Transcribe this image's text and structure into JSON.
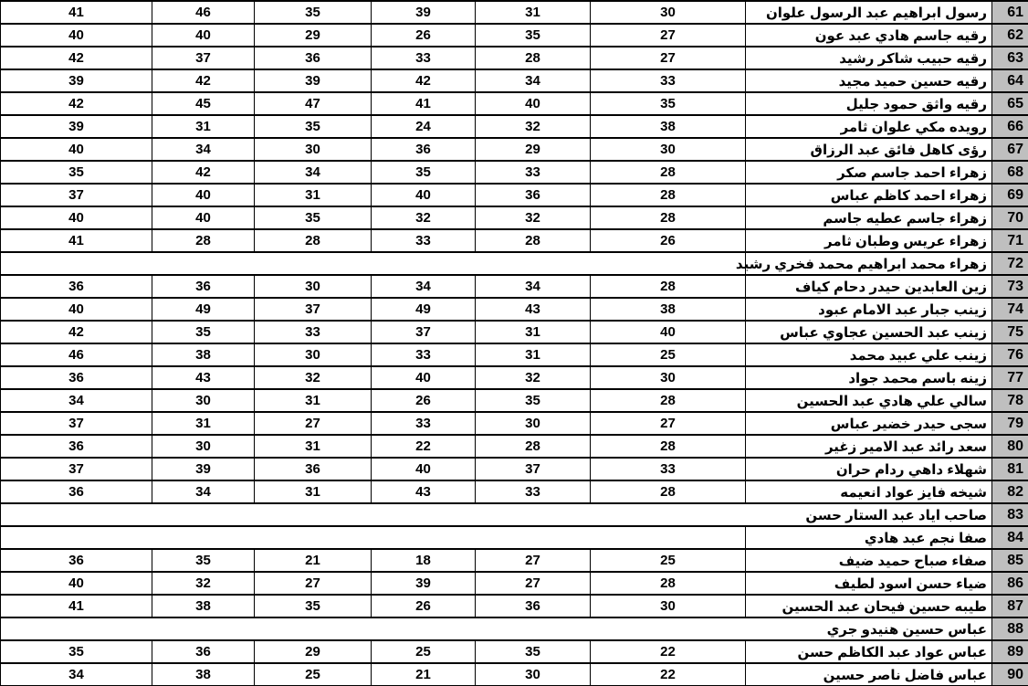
{
  "app": {
    "kind_label": "spreadsheet-grade-table"
  },
  "colors": {
    "grid": "#000000",
    "row_number_bg": "#bfbfbf",
    "cell_bg": "#ffffff",
    "text": "#000000"
  },
  "table": {
    "score_column_count": 6,
    "rows": [
      {
        "num": "61",
        "name": "رسول ابراهيم عبد الرسول علوان",
        "values": [
          "41",
          "46",
          "35",
          "39",
          "31",
          "30"
        ]
      },
      {
        "num": "62",
        "name": "رقيه جاسم هادي عبد عون",
        "values": [
          "40",
          "40",
          "29",
          "26",
          "35",
          "27"
        ]
      },
      {
        "num": "63",
        "name": "رقيه حبيب شاكر رشيد",
        "values": [
          "42",
          "37",
          "36",
          "33",
          "28",
          "27"
        ]
      },
      {
        "num": "64",
        "name": "رقيه حسين حميد مجيد",
        "values": [
          "39",
          "42",
          "39",
          "42",
          "34",
          "33"
        ]
      },
      {
        "num": "65",
        "name": "رقيه واثق حمود جليل",
        "values": [
          "42",
          "45",
          "47",
          "41",
          "40",
          "35"
        ]
      },
      {
        "num": "66",
        "name": "رويده مكي علوان ثامر",
        "values": [
          "39",
          "31",
          "35",
          "24",
          "32",
          "38"
        ]
      },
      {
        "num": "67",
        "name": "رؤى كاهل فائق عبد الرزاق",
        "values": [
          "40",
          "34",
          "30",
          "36",
          "29",
          "30"
        ]
      },
      {
        "num": "68",
        "name": "زهراء احمد جاسم صكر",
        "values": [
          "35",
          "42",
          "34",
          "35",
          "33",
          "28"
        ]
      },
      {
        "num": "69",
        "name": "زهراء احمد كاظم عباس",
        "values": [
          "37",
          "40",
          "31",
          "40",
          "36",
          "28"
        ]
      },
      {
        "num": "70",
        "name": "زهراء جاسم عطيه جاسم",
        "values": [
          "40",
          "40",
          "35",
          "32",
          "32",
          "28"
        ]
      },
      {
        "num": "71",
        "name": "زهراء عريس وطبان ثامر",
        "values": [
          "41",
          "28",
          "28",
          "33",
          "28",
          "26"
        ]
      },
      {
        "num": "72",
        "name": "زهراء محمد ابراهيم محمد فخري رشيد",
        "values": [],
        "empty": true,
        "name_left_border": true
      },
      {
        "num": "73",
        "name": "زين العابدين حيدر دحام كياف",
        "values": [
          "36",
          "36",
          "30",
          "34",
          "34",
          "28"
        ]
      },
      {
        "num": "74",
        "name": "زينب جبار عبد الامام عبود",
        "values": [
          "40",
          "49",
          "37",
          "49",
          "43",
          "38"
        ]
      },
      {
        "num": "75",
        "name": "زينب عبد الحسين عجاوي عباس",
        "values": [
          "42",
          "35",
          "33",
          "37",
          "31",
          "40"
        ]
      },
      {
        "num": "76",
        "name": "زينب علي عبيد محمد",
        "values": [
          "46",
          "38",
          "30",
          "33",
          "31",
          "25"
        ]
      },
      {
        "num": "77",
        "name": "زينه باسم محمد جواد",
        "values": [
          "36",
          "43",
          "32",
          "40",
          "32",
          "30"
        ]
      },
      {
        "num": "78",
        "name": "سالي علي هادي عبد الحسين",
        "values": [
          "34",
          "30",
          "31",
          "26",
          "35",
          "28"
        ]
      },
      {
        "num": "79",
        "name": "سجى حيدر خضير عباس",
        "values": [
          "37",
          "31",
          "27",
          "33",
          "30",
          "27"
        ]
      },
      {
        "num": "80",
        "name": "سعد رائد عبد الامير زغير",
        "values": [
          "36",
          "30",
          "31",
          "22",
          "28",
          "28"
        ]
      },
      {
        "num": "81",
        "name": "شهلاء داهي ردام حران",
        "values": [
          "37",
          "39",
          "36",
          "40",
          "37",
          "33"
        ]
      },
      {
        "num": "82",
        "name": "شيخه فايز عواد انعيمه",
        "values": [
          "36",
          "34",
          "31",
          "43",
          "33",
          "28"
        ]
      },
      {
        "num": "83",
        "name": "صاحب اياد عبد الستار حسن",
        "values": [],
        "empty": true,
        "name_left_border": false
      },
      {
        "num": "84",
        "name": "صفا نجم عبد هادي",
        "values": [],
        "empty": true,
        "name_left_border": true
      },
      {
        "num": "85",
        "name": "صفاء صباح حميد ضيف",
        "values": [
          "36",
          "35",
          "21",
          "18",
          "27",
          "25"
        ]
      },
      {
        "num": "86",
        "name": "ضياء حسن اسود لطيف",
        "values": [
          "40",
          "32",
          "27",
          "39",
          "27",
          "28"
        ]
      },
      {
        "num": "87",
        "name": "طيبه حسين فيحان عبد الحسين",
        "values": [
          "41",
          "38",
          "35",
          "26",
          "36",
          "30"
        ]
      },
      {
        "num": "88",
        "name": "عباس حسين هنيدو جري",
        "values": [],
        "empty": true,
        "name_left_border": false
      },
      {
        "num": "89",
        "name": "عباس عواد عبد الكاظم حسن",
        "values": [
          "35",
          "36",
          "29",
          "25",
          "35",
          "22"
        ]
      },
      {
        "num": "90",
        "name": "عباس فاضل ناصر حسين",
        "values": [
          "34",
          "38",
          "25",
          "21",
          "30",
          "22"
        ]
      }
    ]
  }
}
